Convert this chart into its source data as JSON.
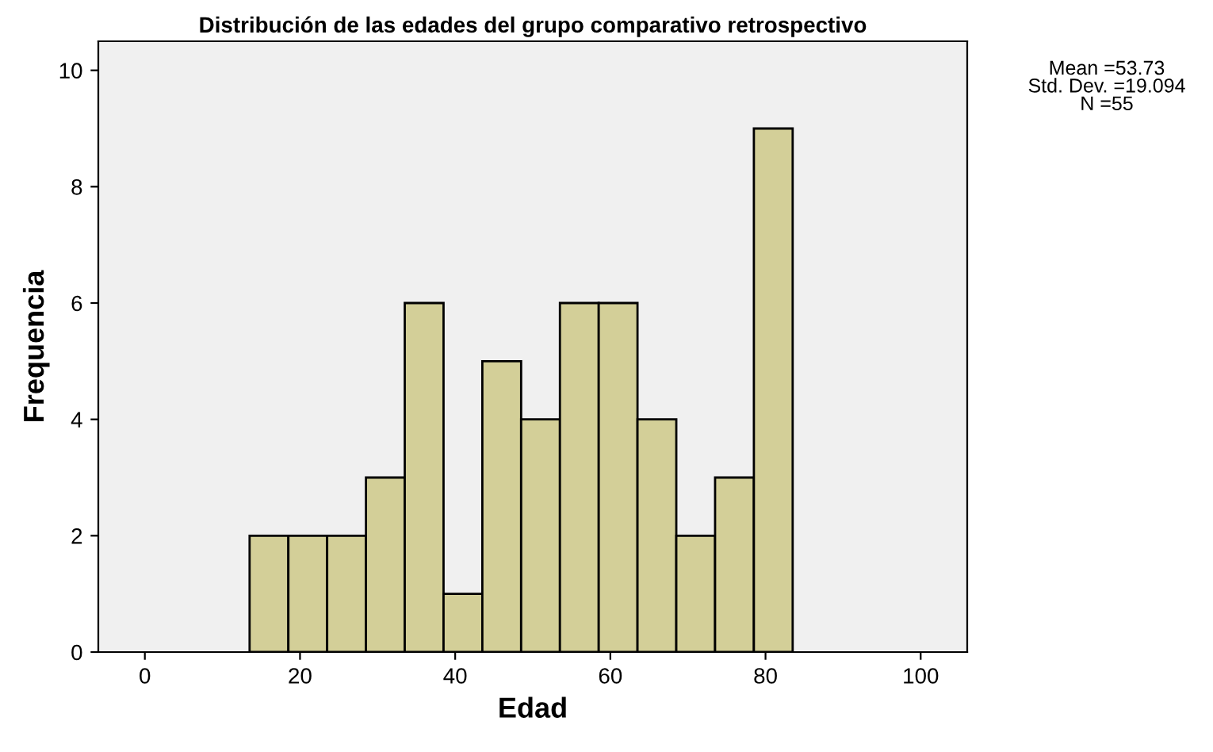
{
  "chart_data": {
    "type": "histogram",
    "title": "Distribución de las edades del grupo comparativo retrospectivo",
    "xlabel": "Edad",
    "ylabel": "Frequencia",
    "bins": [
      13.5,
      18.5,
      23.5,
      28.5,
      33.5,
      38.5,
      43.5,
      48.5,
      53.5,
      58.5,
      63.5,
      68.5,
      73.5,
      78.5,
      83.5
    ],
    "values": [
      2,
      2,
      2,
      3,
      6,
      1,
      5,
      4,
      6,
      6,
      4,
      2,
      3,
      9
    ],
    "color": "#d3cf98",
    "xlim": [
      -6,
      106
    ],
    "xticks": [
      0,
      20,
      40,
      60,
      80,
      100
    ],
    "ylim": [
      0,
      10.5
    ],
    "yticks": [
      0,
      2,
      4,
      6,
      8,
      10
    ],
    "annotations": [
      "Mean =53.73\nStd. Dev. =19.094\nN =55"
    ],
    "grid": false,
    "legend": false
  }
}
